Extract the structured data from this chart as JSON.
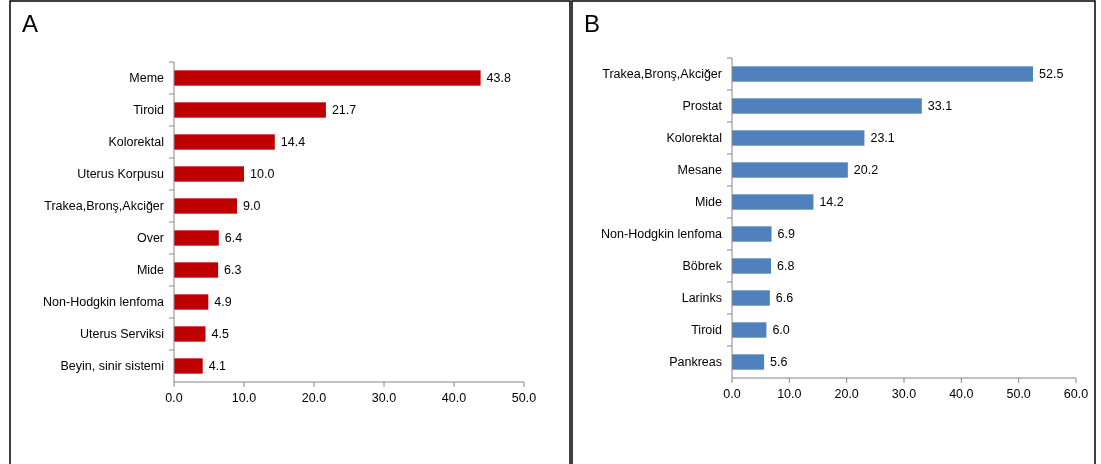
{
  "chart_data": [
    {
      "type": "bar",
      "title": "A",
      "orientation": "horizontal",
      "categories": [
        "Meme",
        "Tiroid",
        "Kolorektal",
        "Uterus Korpusu",
        "Trakea,Bronş,Akciğer",
        "Over",
        "Mide",
        "Non-Hodgkin lenfoma",
        "Uterus Serviksi",
        "Beyin, sinir sistemi"
      ],
      "values": [
        43.8,
        21.7,
        14.4,
        10.0,
        9.0,
        6.4,
        6.3,
        4.9,
        4.5,
        4.1
      ],
      "value_labels": [
        "43.8",
        "21.7",
        "14.4",
        "10.0",
        "9.0",
        "6.4",
        "6.3",
        "4.9",
        "4.5",
        "4.1"
      ],
      "color": "#c00000",
      "xlim": [
        0,
        50
      ],
      "xticks": [
        {
          "value": 0,
          "label": "0.0"
        },
        {
          "value": 10,
          "label": "10.0"
        },
        {
          "value": 20,
          "label": "20.0"
        },
        {
          "value": 30,
          "label": "30.0"
        },
        {
          "value": 40,
          "label": "40.0"
        },
        {
          "value": 50,
          "label": "50.0"
        }
      ]
    },
    {
      "type": "bar",
      "title": "B",
      "orientation": "horizontal",
      "categories": [
        "Trakea,Bronş,Akciğer",
        "Prostat",
        "Kolorektal",
        "Mesane",
        "Mide",
        "Non-Hodgkin lenfoma",
        "Böbrek",
        "Larinks",
        "Tiroid",
        "Pankreas"
      ],
      "values": [
        52.5,
        33.1,
        23.1,
        20.2,
        14.2,
        6.9,
        6.8,
        6.6,
        6.0,
        5.6
      ],
      "value_labels": [
        "52.5",
        "33.1",
        "23.1",
        "20.2",
        "14.2",
        "6.9",
        "6.8",
        "6.6",
        "6.0",
        "5.6"
      ],
      "color": "#4f81bd",
      "xlim": [
        0,
        60
      ],
      "xticks": [
        {
          "value": 0,
          "label": "0.0"
        },
        {
          "value": 10,
          "label": "10.0"
        },
        {
          "value": 20,
          "label": "20.0"
        },
        {
          "value": 30,
          "label": "30.0"
        },
        {
          "value": 40,
          "label": "40.0"
        },
        {
          "value": 50,
          "label": "50.0"
        },
        {
          "value": 60,
          "label": "60.0"
        }
      ]
    }
  ]
}
